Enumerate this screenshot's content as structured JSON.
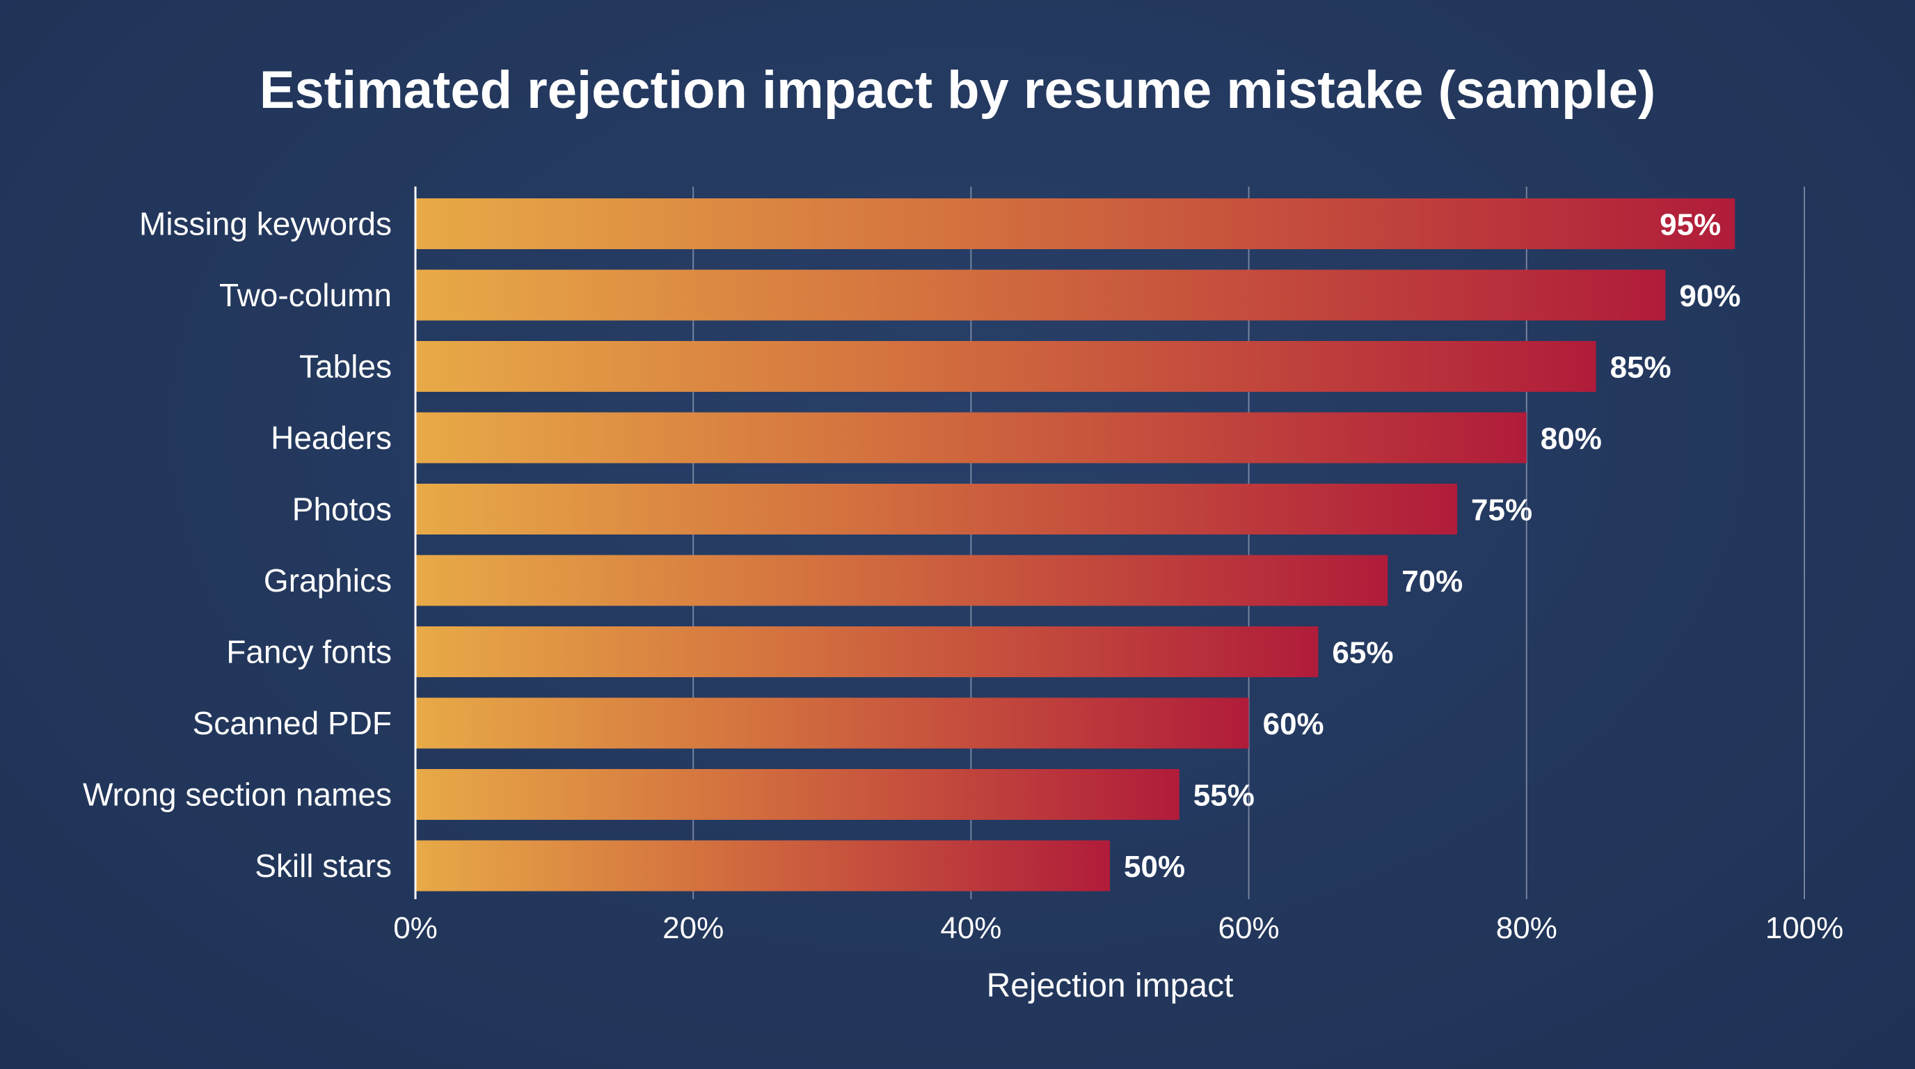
{
  "chart_data": {
    "type": "bar",
    "orientation": "horizontal",
    "title": "Estimated rejection impact by resume mistake (sample)",
    "xlabel": "Rejection impact",
    "ylabel": "",
    "categories": [
      "Missing keywords",
      "Two-column",
      "Tables",
      "Headers",
      "Photos",
      "Graphics",
      "Fancy fonts",
      "Scanned PDF",
      "Wrong section names",
      "Skill stars"
    ],
    "values": [
      95,
      90,
      85,
      80,
      75,
      70,
      65,
      60,
      55,
      50
    ],
    "value_labels": [
      "95%",
      "90%",
      "85%",
      "80%",
      "75%",
      "70%",
      "65%",
      "60%",
      "55%",
      "50%"
    ],
    "xlim": [
      0,
      100
    ],
    "x_ticks": [
      0,
      20,
      40,
      60,
      80,
      100
    ],
    "x_tick_labels": [
      "0%",
      "20%",
      "40%",
      "60%",
      "80%",
      "100%"
    ],
    "grid": "vertical",
    "legend": "none",
    "colors": {
      "background": "#243960",
      "bar_gradient_start": "#e8aa47",
      "bar_gradient_mid": "#d4733f",
      "bar_gradient_end": "#b01c3a",
      "grid": "#8f9bb3",
      "text": "#ffffff"
    }
  }
}
